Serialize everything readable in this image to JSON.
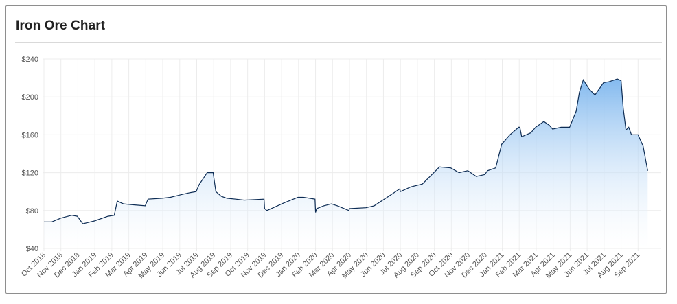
{
  "header": {
    "title": "Iron Ore Chart"
  },
  "colors": {
    "line": "#0d2c54",
    "fill_top": "#7db6ee",
    "fill_bottom": "#ffffff",
    "grid": "#ececec"
  },
  "chart_data": {
    "type": "area",
    "title": "Iron Ore Chart",
    "xlabel": "",
    "ylabel": "",
    "ylim": [
      40,
      240
    ],
    "y_ticks": [
      40,
      80,
      120,
      160,
      200,
      240
    ],
    "y_tick_labels": [
      "$40",
      "$80",
      "$120",
      "$160",
      "$200",
      "$240"
    ],
    "x_tick_labels": [
      "Oct 2018",
      "Nov 2018",
      "Dec 2018",
      "Jan 2019",
      "Feb 2019",
      "Mar 2019",
      "Apr 2019",
      "May 2019",
      "Jun 2019",
      "Jul 2019",
      "Aug 2019",
      "Sep 2019",
      "Oct 2019",
      "Nov 2019",
      "Dec 2019",
      "Jan 2020",
      "Feb 2020",
      "Mar 2020",
      "Apr 2020",
      "May 2020",
      "Jun 2020",
      "Jul 2020",
      "Aug 2020",
      "Sep 2020",
      "Oct 2020",
      "Nov 2020",
      "Dec 2020",
      "Jan 2021",
      "Feb 2021",
      "Mar 2021",
      "Apr 2021",
      "May 2021",
      "Jun 2021",
      "Jul 2021",
      "Aug 2021",
      "Sep 2021"
    ],
    "grid": true,
    "legend": "none",
    "series": [
      {
        "x": [
          "2018-10-01",
          "2018-10-15",
          "2018-11-01",
          "2018-11-20",
          "2018-11-30",
          "2018-12-05",
          "2018-12-10",
          "2018-12-31",
          "2019-01-25",
          "2019-02-05",
          "2019-02-10",
          "2019-02-20",
          "2019-03-10",
          "2019-03-31",
          "2019-04-05",
          "2019-04-30",
          "2019-05-15",
          "2019-06-05",
          "2019-06-20",
          "2019-06-30",
          "2019-07-05",
          "2019-07-20",
          "2019-07-31",
          "2019-08-05",
          "2019-08-15",
          "2019-08-25",
          "2019-09-10",
          "2019-09-25",
          "2019-10-31",
          "2019-11-01",
          "2019-11-05",
          "2019-11-20",
          "2019-12-05",
          "2019-12-31",
          "2020-01-10",
          "2020-01-31",
          "2020-02-01",
          "2020-02-03",
          "2020-02-15",
          "2020-02-28",
          "2020-03-10",
          "2020-03-31",
          "2020-04-01",
          "2020-04-30",
          "2020-05-15",
          "2020-06-10",
          "2020-06-30",
          "2020-07-01",
          "2020-07-20",
          "2020-08-10",
          "2020-08-31",
          "2020-09-10",
          "2020-09-30",
          "2020-10-15",
          "2020-10-31",
          "2020-11-15",
          "2020-11-30",
          "2020-12-05",
          "2020-12-20",
          "2020-12-31",
          "2021-01-15",
          "2021-01-31",
          "2021-02-02",
          "2021-02-05",
          "2021-02-20",
          "2021-02-28",
          "2021-03-15",
          "2021-03-25",
          "2021-03-31",
          "2021-04-15",
          "2021-04-30",
          "2021-05-05",
          "2021-05-12",
          "2021-05-18",
          "2021-05-25",
          "2021-06-05",
          "2021-06-15",
          "2021-06-30",
          "2021-07-10",
          "2021-07-20",
          "2021-07-25",
          "2021-08-01",
          "2021-08-05",
          "2021-08-10",
          "2021-08-15",
          "2021-08-20",
          "2021-09-01",
          "2021-09-10",
          "2021-09-18"
        ],
        "values": [
          68,
          68,
          72,
          75,
          74,
          70,
          66,
          69,
          74,
          75,
          90,
          87,
          86,
          85,
          92,
          93,
          94,
          97,
          99,
          100,
          107,
          120,
          120,
          100,
          95,
          93,
          92,
          91,
          92,
          82,
          80,
          84,
          88,
          94,
          94,
          92,
          78,
          82,
          85,
          87,
          85,
          80,
          82,
          83,
          85,
          95,
          103,
          100,
          105,
          108,
          120,
          126,
          125,
          120,
          122,
          116,
          118,
          122,
          125,
          150,
          160,
          168,
          168,
          158,
          162,
          168,
          174,
          170,
          166,
          168,
          168,
          175,
          185,
          205,
          218,
          208,
          202,
          215,
          216,
          218,
          219,
          217,
          188,
          165,
          168,
          160,
          160,
          148,
          122
        ]
      }
    ]
  }
}
